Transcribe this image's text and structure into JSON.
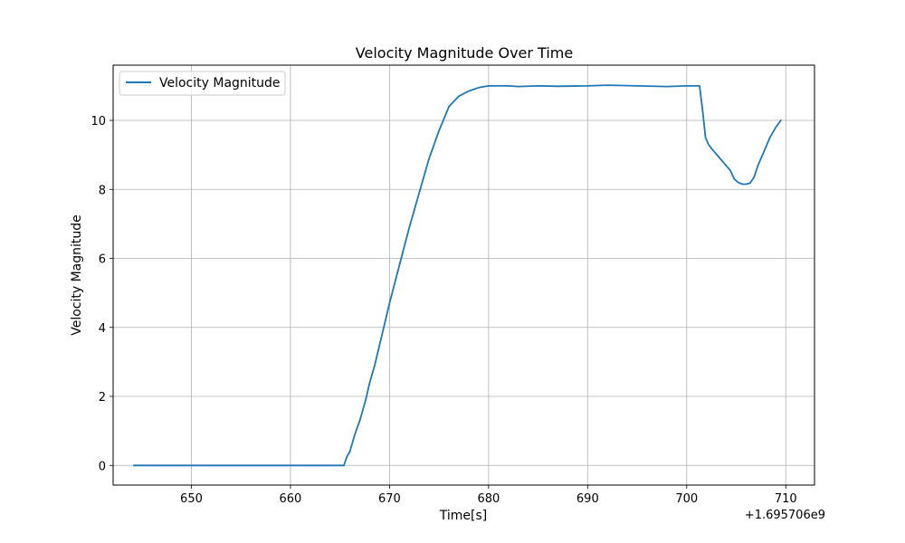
{
  "chart_data": {
    "type": "line",
    "title": "Velocity Magnitude Over Time",
    "xlabel": "Time[s]",
    "ylabel": "Velocity Magnitude",
    "x_offset_label": "+1.695706e9",
    "x_ticks": [
      650,
      660,
      670,
      680,
      690,
      700,
      710
    ],
    "y_ticks": [
      0,
      2,
      4,
      6,
      8,
      10
    ],
    "xlim": [
      642.1,
      712.9
    ],
    "ylim": [
      -0.57,
      11.6
    ],
    "grid": true,
    "legend_position": "top-left",
    "series": [
      {
        "name": "Velocity Magnitude",
        "color": "#1f77b4",
        "x": [
          644.2,
          650,
          660,
          665.4,
          665.7,
          666.0,
          666.5,
          667.0,
          667.6,
          668.0,
          668.5,
          669.0,
          670.0,
          671.0,
          672.0,
          673.0,
          674.0,
          675.0,
          676.0,
          677.0,
          678.0,
          679.0,
          680.0,
          681.0,
          682.0,
          683.0,
          685.0,
          687.0,
          690.0,
          692.0,
          695.0,
          698.0,
          700.0,
          701.3,
          701.6,
          701.9,
          702.2,
          702.6,
          703.2,
          703.8,
          704.4,
          704.8,
          705.2,
          705.6,
          706.0,
          706.4,
          706.8,
          707.2,
          707.8,
          708.4,
          709.0,
          709.5
        ],
        "y": [
          0,
          0,
          0,
          0,
          0.25,
          0.4,
          0.9,
          1.3,
          1.9,
          2.4,
          2.9,
          3.5,
          4.7,
          5.8,
          6.9,
          7.9,
          8.9,
          9.7,
          10.4,
          10.7,
          10.85,
          10.95,
          11.0,
          11.0,
          11.0,
          10.98,
          11.0,
          10.99,
          11.0,
          11.02,
          11.0,
          10.98,
          11.0,
          11.0,
          10.3,
          9.5,
          9.3,
          9.15,
          8.95,
          8.75,
          8.55,
          8.3,
          8.2,
          8.15,
          8.15,
          8.18,
          8.35,
          8.7,
          9.1,
          9.5,
          9.8,
          10.0
        ]
      }
    ]
  }
}
